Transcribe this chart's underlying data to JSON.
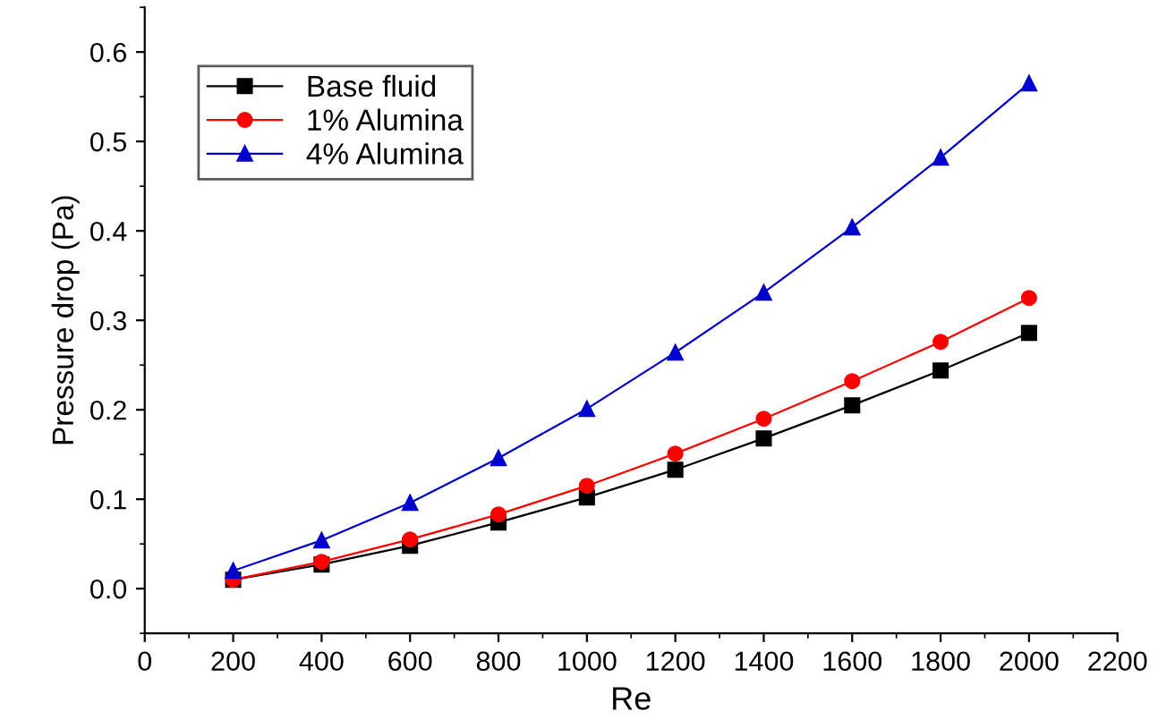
{
  "chart_data": {
    "type": "line",
    "xlabel": "Re",
    "ylabel": "Pressure drop (Pa)",
    "x": [
      200,
      400,
      600,
      800,
      1000,
      1200,
      1400,
      1600,
      1800,
      2000
    ],
    "series": [
      {
        "name": "Base fluid",
        "color": "#000000",
        "marker": "square",
        "values": [
          0.01,
          0.027,
          0.048,
          0.074,
          0.102,
          0.133,
          0.168,
          0.205,
          0.244,
          0.286
        ]
      },
      {
        "name": "1% Alumina",
        "color": "#ff0000",
        "marker": "circle",
        "values": [
          0.01,
          0.03,
          0.055,
          0.083,
          0.115,
          0.151,
          0.19,
          0.232,
          0.276,
          0.325
        ]
      },
      {
        "name": "4% Alumina",
        "color": "#0000cc",
        "marker": "triangle",
        "values": [
          0.02,
          0.054,
          0.096,
          0.146,
          0.201,
          0.264,
          0.331,
          0.404,
          0.482,
          0.565
        ]
      }
    ],
    "xlim": [
      0,
      2200
    ],
    "xticks": [
      0,
      200,
      400,
      600,
      800,
      1000,
      1200,
      1400,
      1600,
      1800,
      2000,
      2200
    ],
    "ylim": [
      -0.05,
      0.65
    ],
    "yticks": [
      {
        "value": 0,
        "label": "0.0"
      },
      0.1,
      0.2,
      0.3,
      0.4,
      0.5,
      0.6
    ],
    "legend": "top left",
    "grid": false,
    "line_style": "solid"
  }
}
